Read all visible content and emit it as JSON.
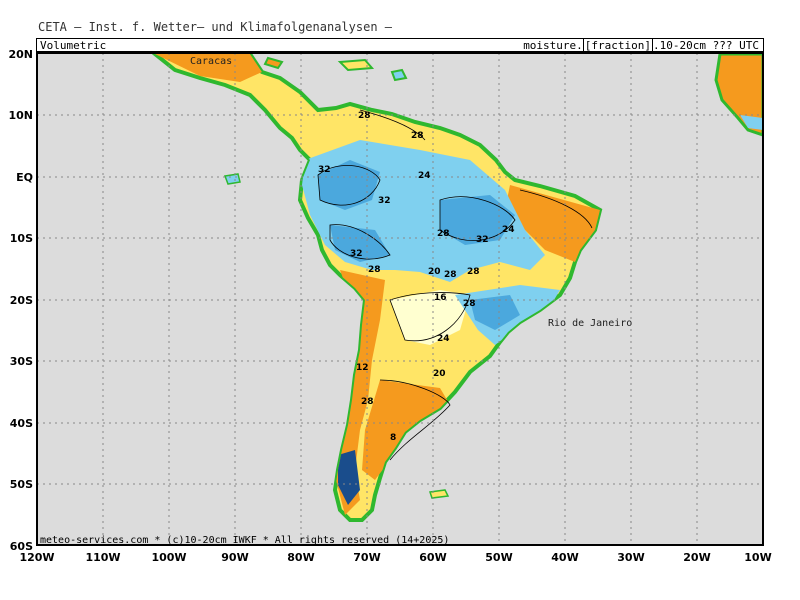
{
  "header": {
    "title": "CETA — Inst. f. Wetter— und Klimafolgenanalysen —"
  },
  "subheader": {
    "left": "Volumetric",
    "right_prefix": "moisture.",
    "right_boxed": "[fraction]",
    "right_suffix": ".10-20cm ??? UTC"
  },
  "axes": {
    "lat_labels": [
      "20N",
      "10N",
      "EQ",
      "10S",
      "20S",
      "30S",
      "40S",
      "50S",
      "60S"
    ],
    "lon_labels": [
      "120W",
      "110W",
      "100W",
      "90W",
      "80W",
      "70W",
      "60W",
      "50W",
      "40W",
      "30W",
      "20W",
      "10W"
    ]
  },
  "places": {
    "rio": "Rio de Janeiro",
    "caracas": "Caracas"
  },
  "footer": {
    "copyright": "meteo-services.com * (c)10-20cm IWKF * All rights reserved (14+2025)"
  },
  "contour_labels": [
    "28",
    "28",
    "32",
    "24",
    "32",
    "28",
    "32",
    "24",
    "32",
    "28",
    "20",
    "28",
    "28",
    "16",
    "28",
    "24",
    "12",
    "20",
    "28",
    "8"
  ],
  "colors": {
    "ocean": "#dcdcdc",
    "dry": "#f59a1e",
    "moderate": "#ffe566",
    "pale": "#ffffd0",
    "moist": "#7fd0ef",
    "wet": "#4ba8dd",
    "coast": "#2fb82f"
  }
}
